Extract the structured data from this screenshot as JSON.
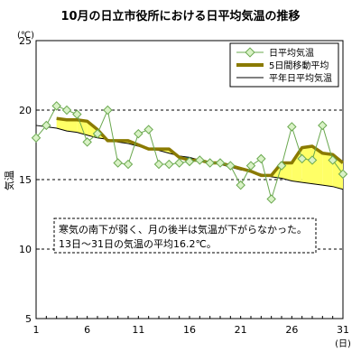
{
  "chart_data": {
    "type": "line",
    "title": "10月の日立市役所における日平均気温の推移",
    "y_unit_label": "(℃)",
    "ylabel": "気温",
    "x_unit_label": "(日)",
    "ylim": [
      5,
      25
    ],
    "y_ticks": [
      5,
      10,
      15,
      20,
      25
    ],
    "xlim": [
      1,
      31
    ],
    "x_ticks": [
      1,
      6,
      11,
      16,
      21,
      26,
      31
    ],
    "grid": {
      "y_dashed": true
    },
    "legend": {
      "placement": "top-right",
      "entries": [
        "日平均気温",
        "5日間移動平均",
        "平年日平均気温"
      ]
    },
    "x": [
      1,
      2,
      3,
      4,
      5,
      6,
      7,
      8,
      9,
      10,
      11,
      12,
      13,
      14,
      15,
      16,
      17,
      18,
      19,
      20,
      21,
      22,
      23,
      24,
      25,
      26,
      27,
      28,
      29,
      30,
      31
    ],
    "series": [
      {
        "name": "日平均気温",
        "values": [
          18.0,
          18.9,
          20.3,
          20.0,
          19.7,
          17.7,
          18.3,
          20.0,
          16.2,
          16.1,
          18.3,
          18.6,
          16.1,
          16.1,
          16.2,
          16.3,
          16.4,
          16.2,
          16.2,
          16.0,
          14.6,
          16.0,
          16.5,
          13.6,
          16.0,
          18.8,
          16.5,
          16.4,
          18.9,
          16.4,
          15.4
        ]
      },
      {
        "name": "5日間移動平均",
        "values": [
          null,
          null,
          19.4,
          19.3,
          19.3,
          19.2,
          18.6,
          17.8,
          17.8,
          17.8,
          17.5,
          17.2,
          17.2,
          17.2,
          16.6,
          16.4,
          16.4,
          16.2,
          16.2,
          16.0,
          15.8,
          15.6,
          15.3,
          15.3,
          16.2,
          16.2,
          17.3,
          17.4,
          16.9,
          16.8,
          16.2
        ]
      },
      {
        "name": "平年日平均気温",
        "values": [
          18.9,
          18.8,
          18.7,
          18.5,
          18.4,
          18.2,
          18.0,
          17.9,
          17.7,
          17.6,
          17.4,
          17.2,
          17.1,
          16.9,
          16.7,
          16.6,
          16.4,
          16.2,
          16.1,
          15.9,
          15.7,
          15.6,
          15.4,
          15.2,
          15.1,
          14.9,
          14.8,
          14.7,
          14.6,
          14.5,
          14.3
        ]
      }
    ],
    "colors": {
      "daily": "#6aa84f",
      "daily_marker_fill": "#d9f2c6",
      "moving": "#8a7a00",
      "normal": "#000000",
      "fill_above": "#ffff66",
      "fill_below": "#33cccc"
    },
    "annotation": {
      "line1": "寒気の南下が弱く、月の後半は気温が下がらなかった。",
      "line2": "13日～31日の気温の平均16.2℃。"
    }
  }
}
